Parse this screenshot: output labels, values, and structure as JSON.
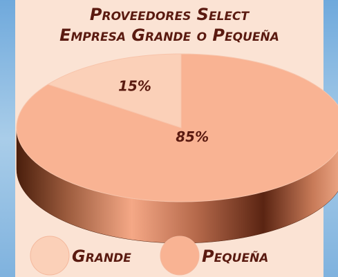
{
  "chart_data": {
    "type": "pie",
    "title": "Proveedores Select",
    "subtitle": "Empresa Grande o Pequeña",
    "categories": [
      "Grande",
      "Pequeña"
    ],
    "values": [
      15,
      85
    ],
    "value_labels": [
      "15%",
      "85%"
    ],
    "colors": [
      "#fbd0b8",
      "#f9b393"
    ],
    "legend": "bottom"
  }
}
